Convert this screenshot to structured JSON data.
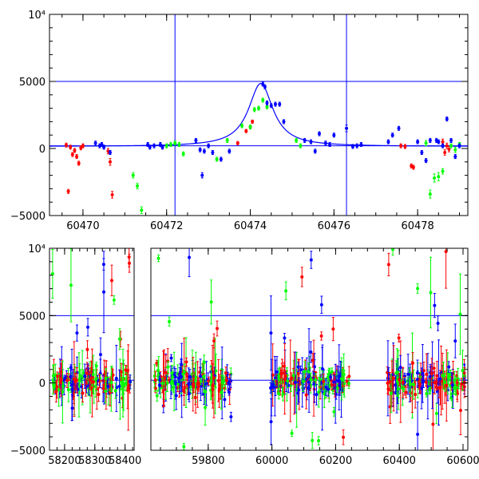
{
  "chart_data": [
    {
      "type": "scatter",
      "title": "",
      "xlabel": "",
      "ylabel": "",
      "xlim": [
        60469.2,
        60479.2
      ],
      "ylim": [
        -5000,
        10000
      ],
      "x_ticks": [
        60470,
        60472,
        60474,
        60476,
        60478
      ],
      "x_tick_labels": [
        "60470",
        "60472",
        "60474",
        "60476",
        "60478"
      ],
      "y_ticks": [
        -5000,
        0,
        5000,
        10000
      ],
      "y_tick_labels": [
        "−5000",
        "0",
        "5000",
        "10⁴"
      ],
      "hlines": [
        5000,
        200
      ],
      "vlines": [
        60472.2,
        60476.3
      ],
      "model_curve": {
        "color": "#0000ff",
        "baseline": 150,
        "peak": 4850,
        "t0": 60474.25,
        "tE": 0.45,
        "x_range": [
          60469.2,
          60479.2
        ]
      },
      "series": [
        {
          "color": "#ff0000",
          "points": [
            [
              60469.6,
              250,
              150
            ],
            [
              60469.65,
              -3200,
              150
            ],
            [
              60469.7,
              100,
              150
            ],
            [
              60469.75,
              -450,
              150
            ],
            [
              60469.8,
              -150,
              150
            ],
            [
              60469.85,
              -600,
              150
            ],
            [
              60469.9,
              -1100,
              150
            ],
            [
              60469.95,
              50,
              150
            ],
            [
              60470.0,
              200,
              150
            ],
            [
              60470.6,
              -200,
              200
            ],
            [
              60470.65,
              -1000,
              250
            ],
            [
              60470.7,
              -3450,
              250
            ],
            [
              60473.7,
              400,
              120
            ],
            [
              60473.9,
              1300,
              120
            ],
            [
              60474.0,
              1600,
              120
            ],
            [
              60474.05,
              2000,
              120
            ],
            [
              60477.6,
              200,
              150
            ],
            [
              60477.7,
              150,
              150
            ],
            [
              60477.85,
              -1300,
              150
            ],
            [
              60477.9,
              -1400,
              150
            ],
            [
              60478.6,
              500,
              200
            ],
            [
              60478.65,
              -300,
              200
            ],
            [
              60478.7,
              200,
              200
            ],
            [
              60478.75,
              -50,
              200
            ]
          ]
        },
        {
          "color": "#00ff00",
          "points": [
            [
              60471.2,
              -2000,
              200
            ],
            [
              60471.3,
              -2800,
              200
            ],
            [
              60471.4,
              -4600,
              250
            ],
            [
              60472.0,
              200,
              150
            ],
            [
              60472.1,
              300,
              150
            ],
            [
              60472.2,
              400,
              150
            ],
            [
              60472.3,
              300,
              150
            ],
            [
              60472.4,
              -400,
              150
            ],
            [
              60473.2,
              -800,
              150
            ],
            [
              60473.45,
              600,
              150
            ],
            [
              60473.8,
              1700,
              150
            ],
            [
              60474.0,
              1600,
              150
            ],
            [
              60474.1,
              2900,
              150
            ],
            [
              60474.2,
              3000,
              150
            ],
            [
              60474.3,
              3600,
              150
            ],
            [
              60474.4,
              3100,
              150
            ],
            [
              60475.1,
              600,
              150
            ],
            [
              60475.2,
              200,
              150
            ],
            [
              60478.2,
              400,
              200
            ],
            [
              60478.3,
              -3400,
              300
            ],
            [
              60478.4,
              -2200,
              300
            ],
            [
              60478.5,
              -2100,
              300
            ],
            [
              60478.6,
              -1700,
              200
            ],
            [
              60478.8,
              200,
              150
            ],
            [
              60478.9,
              -100,
              200
            ],
            [
              60479.0,
              300,
              150
            ]
          ]
        },
        {
          "color": "#0000ff",
          "points": [
            [
              60470.3,
              400,
              150
            ],
            [
              60470.4,
              200,
              150
            ],
            [
              60470.45,
              300,
              150
            ],
            [
              60470.5,
              100,
              150
            ],
            [
              60470.65,
              -300,
              150
            ],
            [
              60471.55,
              300,
              150
            ],
            [
              60471.6,
              100,
              150
            ],
            [
              60471.7,
              200,
              150
            ],
            [
              60471.85,
              300,
              150
            ],
            [
              60471.9,
              100,
              150
            ],
            [
              60472.7,
              600,
              150
            ],
            [
              60472.8,
              -100,
              150
            ],
            [
              60472.85,
              -2000,
              200
            ],
            [
              60472.9,
              -200,
              150
            ],
            [
              60473.0,
              200,
              150
            ],
            [
              60473.1,
              -300,
              150
            ],
            [
              60473.3,
              -800,
              150
            ],
            [
              60473.5,
              -200,
              150
            ],
            [
              60474.3,
              4800,
              150
            ],
            [
              60474.35,
              4600,
              150
            ],
            [
              60474.4,
              3400,
              150
            ],
            [
              60474.5,
              3200,
              150
            ],
            [
              60474.6,
              3300,
              150
            ],
            [
              60474.7,
              3300,
              150
            ],
            [
              60474.8,
              2000,
              150
            ],
            [
              60475.3,
              600,
              150
            ],
            [
              60475.45,
              500,
              150
            ],
            [
              60475.55,
              -200,
              150
            ],
            [
              60475.65,
              1100,
              150
            ],
            [
              60475.8,
              400,
              150
            ],
            [
              60475.9,
              300,
              150
            ],
            [
              60476.0,
              1000,
              150
            ],
            [
              60476.3,
              1500,
              250
            ],
            [
              60476.45,
              150,
              150
            ],
            [
              60476.55,
              200,
              150
            ],
            [
              60476.65,
              300,
              150
            ],
            [
              60477.3,
              500,
              150
            ],
            [
              60477.4,
              1000,
              150
            ],
            [
              60477.55,
              1500,
              150
            ],
            [
              60478.0,
              500,
              150
            ],
            [
              60478.1,
              -300,
              150
            ],
            [
              60478.2,
              -900,
              150
            ],
            [
              60478.3,
              600,
              150
            ],
            [
              60478.45,
              600,
              150
            ],
            [
              60478.5,
              500,
              150
            ],
            [
              60478.6,
              200,
              150
            ],
            [
              60478.7,
              2200,
              150
            ],
            [
              60478.8,
              600,
              150
            ],
            [
              60478.9,
              -600,
              150
            ],
            [
              60479.0,
              200,
              150
            ]
          ]
        }
      ]
    },
    {
      "type": "scatter",
      "title": "",
      "xlabel": "",
      "ylabel": "",
      "ylim": [
        -5000,
        10000
      ],
      "y_ticks": [
        -5000,
        0,
        5000,
        10000
      ],
      "y_tick_labels": [
        "−5000",
        "0",
        "5000",
        "10⁴"
      ],
      "hlines": [
        5000,
        200
      ],
      "season_gap_between_segments": true,
      "segments": [
        {
          "xlim": [
            58150,
            58430
          ],
          "x_ticks": [
            58200,
            58300,
            58400
          ],
          "x_tick_labels": [
            "58200",
            "58300",
            "58400"
          ],
          "data_range": [
            58160,
            58420
          ]
        },
        {
          "xlim": [
            59620,
            60615
          ],
          "x_ticks": [
            59800,
            60000,
            60200,
            60400,
            60600
          ],
          "x_tick_labels": [
            "59800",
            "60000",
            "60200",
            "60400",
            "60600"
          ],
          "data_ranges": [
            [
              59630,
              59875
            ],
            [
              59995,
              60245
            ],
            [
              60360,
              60605
            ]
          ]
        }
      ],
      "series_colors": [
        "#ff0000",
        "#00ff00",
        "#0000ff"
      ],
      "noise_model": {
        "n_points_per_season": 170,
        "mean": 100,
        "sigma": 500,
        "outlier_fraction": 0.12,
        "outlier_range": [
          -5000,
          10000
        ],
        "error_sigma": 500
      }
    }
  ]
}
